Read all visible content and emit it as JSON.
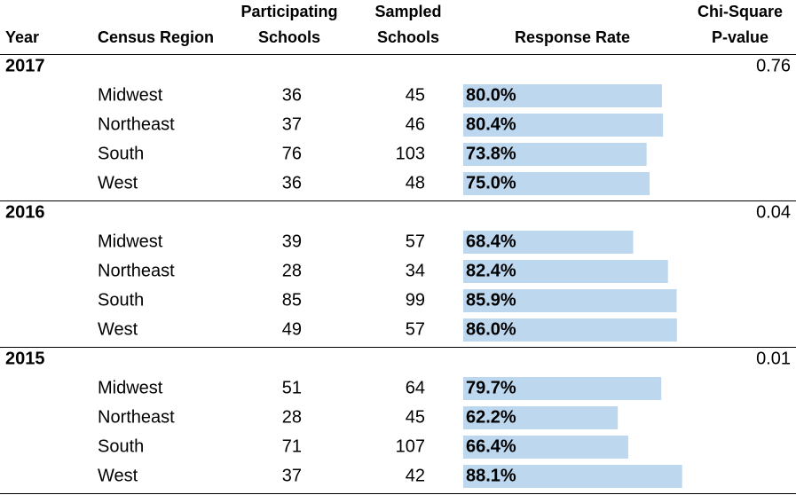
{
  "header": {
    "columns": [
      [
        "Year"
      ],
      [
        "Census Region"
      ],
      [
        "Participating",
        "Schools"
      ],
      [
        "Sampled",
        "Schools"
      ],
      [
        "Response Rate"
      ],
      [
        "Chi-Square",
        "P-value"
      ]
    ]
  },
  "groups": [
    {
      "year": 2017,
      "p_value": 0.76,
      "rows": [
        {
          "region": "Midwest",
          "participating": 36,
          "sampled": 45,
          "rate": {
            "value": 80.0,
            "label": "80.0%"
          }
        },
        {
          "region": "Northeast",
          "participating": 37,
          "sampled": 46,
          "rate": {
            "value": 80.4,
            "label": "80.4%"
          }
        },
        {
          "region": "South",
          "participating": 76,
          "sampled": 103,
          "rate": {
            "value": 73.8,
            "label": "73.8%"
          }
        },
        {
          "region": "West",
          "participating": 36,
          "sampled": 48,
          "rate": {
            "value": 75.0,
            "label": "75.0%"
          }
        }
      ]
    },
    {
      "year": 2016,
      "p_value": 0.04,
      "rows": [
        {
          "region": "Midwest",
          "participating": 39,
          "sampled": 57,
          "rate": {
            "value": 68.4,
            "label": "68.4%"
          }
        },
        {
          "region": "Northeast",
          "participating": 28,
          "sampled": 34,
          "rate": {
            "value": 82.4,
            "label": "82.4%"
          }
        },
        {
          "region": "South",
          "participating": 85,
          "sampled": 99,
          "rate": {
            "value": 85.9,
            "label": "85.9%"
          }
        },
        {
          "region": "West",
          "participating": 49,
          "sampled": 57,
          "rate": {
            "value": 86.0,
            "label": "86.0%"
          }
        }
      ]
    },
    {
      "year": 2015,
      "p_value": 0.01,
      "rows": [
        {
          "region": "Midwest",
          "participating": 51,
          "sampled": 64,
          "rate": {
            "value": 79.7,
            "label": "79.7%"
          }
        },
        {
          "region": "Northeast",
          "participating": 28,
          "sampled": 45,
          "rate": {
            "value": 62.2,
            "label": "62.2%"
          }
        },
        {
          "region": "South",
          "participating": 71,
          "sampled": 107,
          "rate": {
            "value": 66.4,
            "label": "66.4%"
          }
        },
        {
          "region": "West",
          "participating": 37,
          "sampled": 42,
          "rate": {
            "value": 88.1,
            "label": "88.1%"
          }
        }
      ]
    }
  ]
}
